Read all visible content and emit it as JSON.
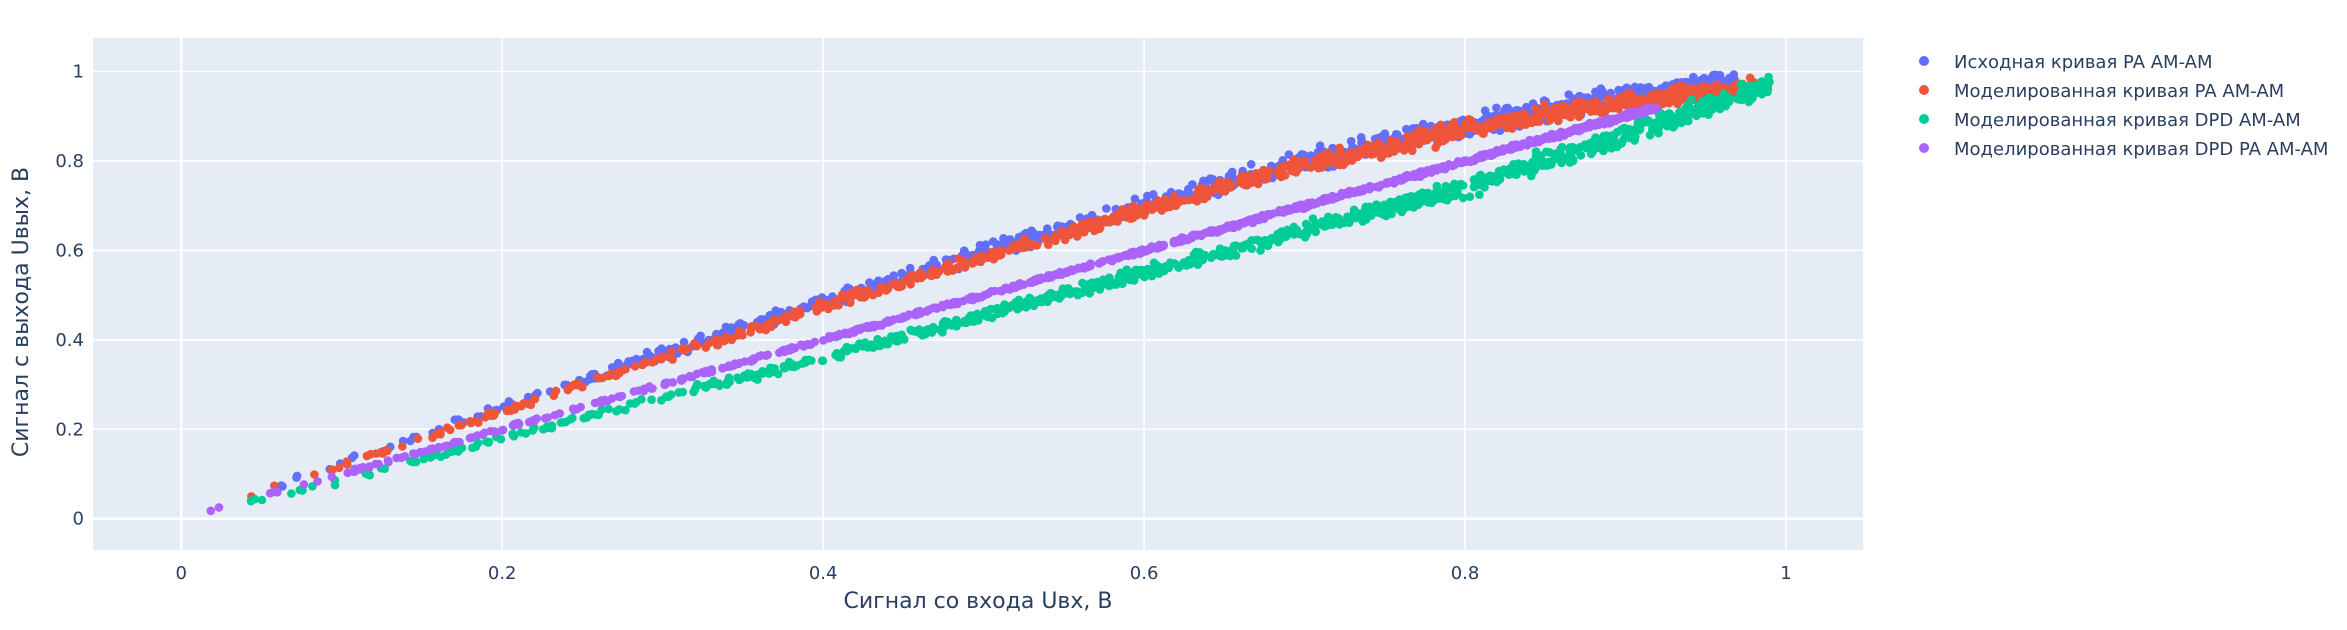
{
  "chart_data": {
    "type": "scatter",
    "title": "",
    "xlabel": "Сигнал со входа Uвх, В",
    "ylabel": "Сигнал с выхода Uвых, В",
    "xlim": [
      -0.055,
      1.048
    ],
    "ylim": [
      -0.07,
      1.075
    ],
    "x_ticks": [
      0,
      0.2,
      0.4,
      0.6,
      0.8,
      1
    ],
    "y_ticks": [
      0,
      0.2,
      0.4,
      0.6,
      0.8,
      1
    ],
    "x_tick_labels": [
      "0",
      "0.2",
      "0.4",
      "0.6",
      "0.8",
      "1"
    ],
    "y_tick_labels": [
      "0",
      "0.2",
      "0.4",
      "0.6",
      "0.8",
      "1"
    ],
    "grid": true,
    "legend_position": "right",
    "colors": {
      "plot_bg": "#e5ecf6",
      "grid": "#ffffff",
      "text": "#2a3f5f"
    },
    "series": [
      {
        "name": "Исходная кривая PA AM-AM",
        "color": "#636efa",
        "x": [
          0.0,
          0.1,
          0.2,
          0.3,
          0.4,
          0.5,
          0.6,
          0.7,
          0.8,
          0.9,
          0.97
        ],
        "y": [
          0.0,
          0.125,
          0.25,
          0.37,
          0.485,
          0.595,
          0.7,
          0.8,
          0.88,
          0.945,
          0.98
        ],
        "spread": [
          0.01,
          0.012,
          0.015,
          0.02,
          0.022,
          0.025,
          0.03,
          0.03,
          0.035,
          0.035,
          0.03
        ],
        "x_range": [
          0.02,
          0.97
        ]
      },
      {
        "name": "Моделированная кривая PA AM-AM",
        "color": "#ef553b",
        "x": [
          0.0,
          0.1,
          0.2,
          0.3,
          0.4,
          0.5,
          0.6,
          0.7,
          0.8,
          0.9,
          0.99
        ],
        "y": [
          0.0,
          0.12,
          0.24,
          0.36,
          0.475,
          0.585,
          0.69,
          0.79,
          0.87,
          0.935,
          0.97
        ],
        "spread": [
          0.01,
          0.01,
          0.012,
          0.015,
          0.018,
          0.02,
          0.022,
          0.025,
          0.03,
          0.03,
          0.025
        ],
        "x_range": [
          0.03,
          0.99
        ]
      },
      {
        "name": "Моделированная кривая DPD AM-AM",
        "color": "#00cc96",
        "x": [
          0.0,
          0.1,
          0.2,
          0.3,
          0.4,
          0.5,
          0.6,
          0.7,
          0.8,
          0.9,
          0.99
        ],
        "y": [
          0.0,
          0.085,
          0.18,
          0.27,
          0.36,
          0.455,
          0.55,
          0.645,
          0.74,
          0.86,
          0.97
        ],
        "spread": [
          0.01,
          0.01,
          0.012,
          0.014,
          0.016,
          0.018,
          0.02,
          0.025,
          0.03,
          0.035,
          0.03
        ],
        "x_range": [
          0.02,
          0.99
        ]
      },
      {
        "name": "Моделированная кривая DPD PA AM-AM",
        "color": "#ab63fa",
        "x": [
          0.0,
          0.1,
          0.2,
          0.3,
          0.4,
          0.5,
          0.6,
          0.7,
          0.8,
          0.9,
          0.92
        ],
        "y": [
          0.0,
          0.1,
          0.2,
          0.3,
          0.4,
          0.5,
          0.6,
          0.7,
          0.8,
          0.9,
          0.92
        ],
        "spread": [
          0.004,
          0.004,
          0.005,
          0.005,
          0.006,
          0.006,
          0.007,
          0.007,
          0.008,
          0.008,
          0.008
        ],
        "x_range": [
          0.01,
          0.92
        ]
      }
    ]
  }
}
